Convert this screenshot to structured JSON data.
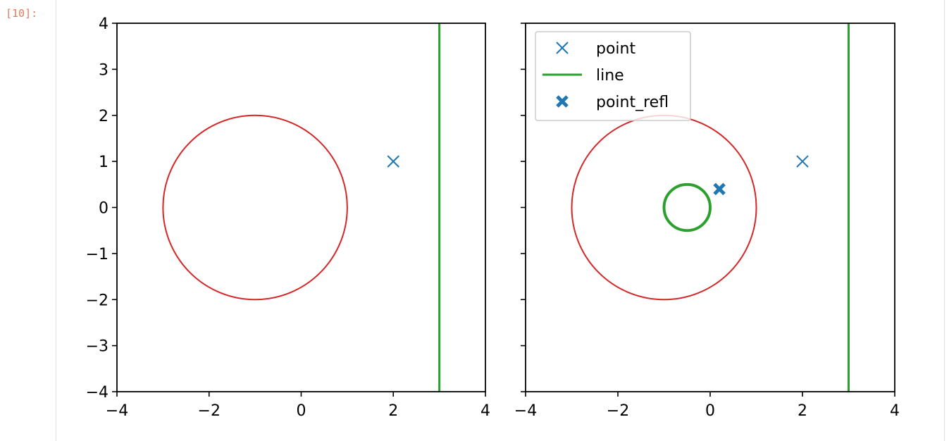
{
  "cell": {
    "prompt": "[10]:"
  },
  "colors": {
    "point": "#1f77b4",
    "line": "#2ca02c",
    "circle": "#d62728"
  },
  "chart_data": [
    {
      "type": "scatter",
      "title": "",
      "xlabel": "",
      "ylabel": "",
      "xlim": [
        -4,
        4
      ],
      "ylim": [
        -4,
        4
      ],
      "xticks": [
        "−4",
        "−2",
        "0",
        "2",
        "4"
      ],
      "yticks": [
        "−4",
        "−3",
        "−2",
        "−1",
        "0",
        "1",
        "2",
        "3",
        "4"
      ],
      "ytick_labels_shown": true,
      "grid": false,
      "legend": null,
      "series": [
        {
          "kind": "point",
          "marker": "x",
          "bold": false,
          "points": [
            [
              2,
              1
            ]
          ]
        },
        {
          "kind": "vertical-line",
          "x": 3
        },
        {
          "kind": "circle",
          "center": [
            -1,
            0
          ],
          "radius": 2
        }
      ]
    },
    {
      "type": "scatter",
      "title": "",
      "xlabel": "",
      "ylabel": "",
      "xlim": [
        -4,
        4
      ],
      "ylim": [
        -4,
        4
      ],
      "xticks": [
        "−4",
        "−2",
        "0",
        "2",
        "4"
      ],
      "yticks": [
        "−4",
        "−3",
        "−2",
        "−1",
        "0",
        "1",
        "2",
        "3",
        "4"
      ],
      "ytick_labels_shown": false,
      "grid": false,
      "legend": {
        "placement": "top-left",
        "entries": [
          {
            "label": "point",
            "kind": "marker-x"
          },
          {
            "label": "line",
            "kind": "line"
          },
          {
            "label": "point_refl",
            "kind": "marker-x-bold"
          }
        ]
      },
      "series": [
        {
          "kind": "point",
          "name": "point",
          "marker": "x",
          "bold": false,
          "points": [
            [
              2,
              1
            ]
          ]
        },
        {
          "kind": "vertical-line",
          "name": "line",
          "x": 3
        },
        {
          "kind": "circle",
          "center": [
            -1,
            0
          ],
          "radius": 2
        },
        {
          "kind": "point",
          "name": "point_refl",
          "marker": "x",
          "bold": true,
          "points": [
            [
              0.2,
              0.4
            ]
          ]
        },
        {
          "kind": "circle-bold",
          "center": [
            -0.5,
            0
          ],
          "radius": 0.5
        }
      ]
    }
  ]
}
